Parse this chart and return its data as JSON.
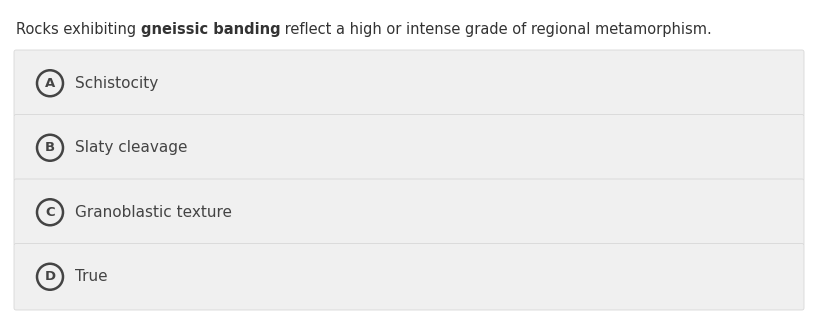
{
  "background_color": "#ffffff",
  "question_text_normal1": "Rocks exhibiting ",
  "question_text_bold": "gneissic banding",
  "question_text_normal2": " reflect a high or intense grade of regional metamorphism.",
  "options": [
    {
      "label": "A",
      "text": "Schistocity"
    },
    {
      "label": "B",
      "text": "Slaty cleavage"
    },
    {
      "label": "C",
      "text": "Granoblastic texture"
    },
    {
      "label": "D",
      "text": "True"
    }
  ],
  "option_bg_color": "#f0f0f0",
  "option_border_color": "#d8d8d8",
  "circle_edge_color": "#444444",
  "text_color": "#444444",
  "question_text_color": "#333333",
  "font_size_question": 10.5,
  "font_size_option": 11,
  "font_size_label": 9.5,
  "fig_width": 8.18,
  "fig_height": 3.18,
  "dpi": 100
}
